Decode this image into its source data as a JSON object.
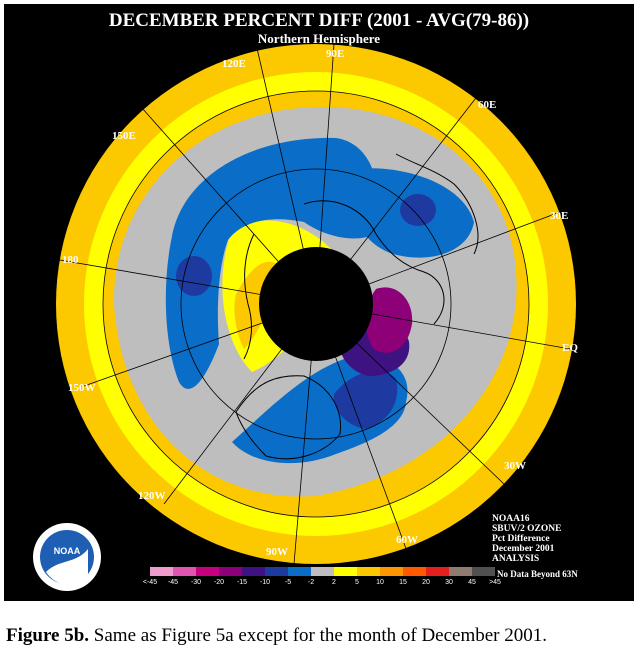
{
  "title": "DECEMBER PERCENT DIFF (2001 - AVG(79-86))",
  "subtitle": "Northern Hemisphere",
  "longitude_labels": [
    "90E",
    "60E",
    "30E",
    "EQ",
    "30W",
    "60W",
    "90W",
    "120W",
    "150W",
    "180",
    "150E",
    "120E"
  ],
  "info_lines": [
    "NOAA16",
    "SBUV/2 OZONE",
    "Pct Difference",
    "December 2001",
    "ANALYSIS"
  ],
  "logo_text": "NOAA",
  "legend": {
    "ticks": [
      "<-45",
      "-45",
      "-30",
      "-20",
      "-15",
      "-10",
      "-5",
      "-2",
      "2",
      "5",
      "10",
      "15",
      "20",
      "30",
      "45",
      ">45"
    ],
    "colors": [
      "#ee9ccc",
      "#e055b0",
      "#c8007f",
      "#8e0078",
      "#3e1280",
      "#1e3aa0",
      "#0a6ec8",
      "#bebebe",
      "#ffff00",
      "#fcc800",
      "#ff9600",
      "#ff5a00",
      "#e61e1e",
      "#907a72",
      "#505050"
    ],
    "nodata_label": "No Data Beyond 63N"
  },
  "caption": {
    "figure_label": "Figure 5b.",
    "text": " Same as Figure 5a except for the month of December 2001."
  }
}
